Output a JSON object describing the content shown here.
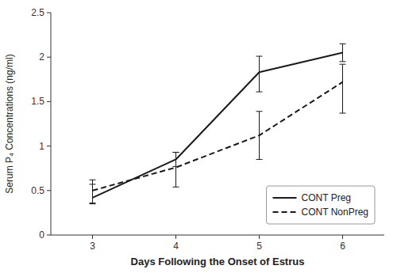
{
  "chart_data": {
    "type": "line",
    "x_label": "Days Following the Onset of Estrus",
    "y_label": "Serum P₄ Concentrations  (ng/ml)",
    "x": [
      3,
      4,
      5,
      6
    ],
    "series": [
      {
        "name": "CONT Preg",
        "color": "#1a1a1a",
        "line_style": "solid",
        "values": [
          0.42,
          0.85,
          1.83,
          2.05
        ],
        "error_lower": [
          0.07,
          0.08,
          0.22,
          0.1
        ],
        "error_upper": [
          0.15,
          0.08,
          0.18,
          0.1
        ]
      },
      {
        "name": "CONT NonPreg",
        "color": "#1a1a1a",
        "line_style": "dashed",
        "values": [
          0.5,
          0.76,
          1.12,
          1.72
        ],
        "error_lower": [
          0.14,
          0.22,
          0.27,
          0.35
        ],
        "error_upper": [
          0.12,
          0.17,
          0.27,
          0.2
        ]
      }
    ],
    "xlim": [
      2.5,
      6.5
    ],
    "ylim": [
      0,
      2.5
    ],
    "xticks": [
      3,
      4,
      5,
      6
    ],
    "yticks": [
      0,
      0.5,
      1,
      1.5,
      2,
      2.5
    ],
    "grid": false,
    "legend": "lower right"
  }
}
